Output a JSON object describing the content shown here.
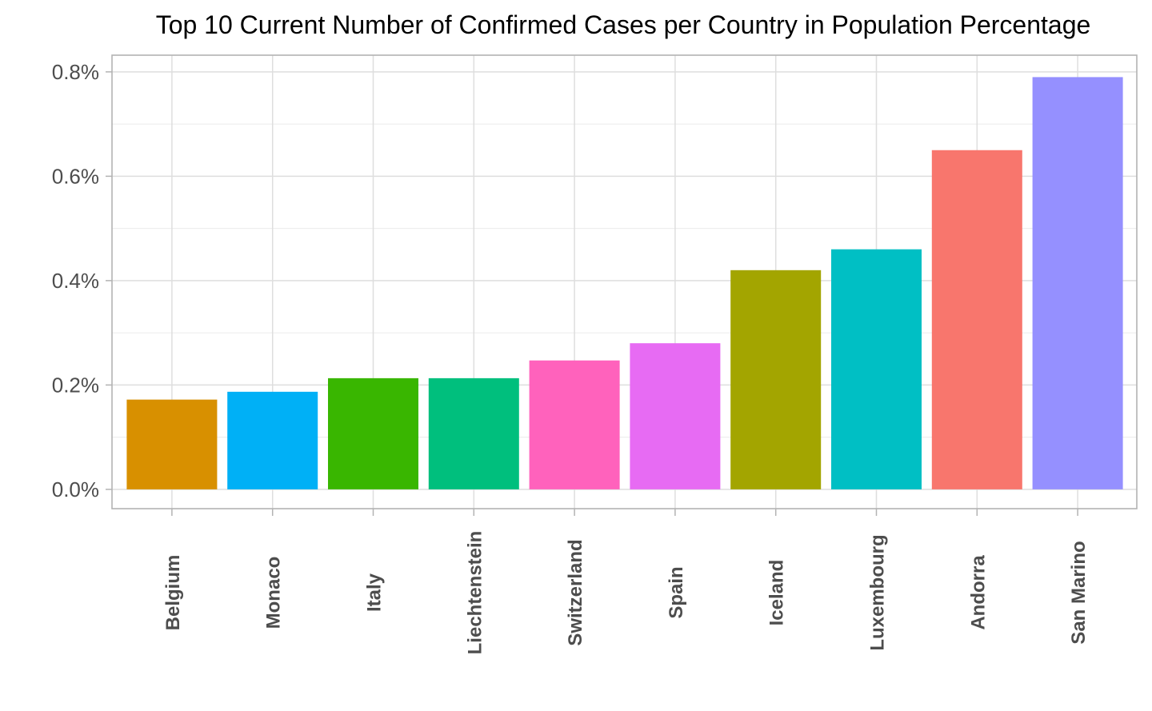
{
  "chart_data": {
    "type": "bar",
    "title": "Top 10 Current Number of Confirmed Cases per Country in Population Percentage",
    "xlabel": "",
    "ylabel": "",
    "categories": [
      "Belgium",
      "Monaco",
      "Italy",
      "Liechtenstein",
      "Switzerland",
      "Spain",
      "Iceland",
      "Luxembourg",
      "Andorra",
      "San Marino"
    ],
    "values": [
      0.172,
      0.187,
      0.213,
      0.213,
      0.247,
      0.28,
      0.42,
      0.46,
      0.65,
      0.79
    ],
    "colors": [
      "#D89000",
      "#00B0F6",
      "#39B600",
      "#00BF7D",
      "#FF62BC",
      "#E76BF3",
      "#A3A500",
      "#00BFC4",
      "#F8766D",
      "#9590FF"
    ],
    "ylim": [
      -0.037,
      0.832
    ],
    "yticks": [
      0.0,
      0.2,
      0.4,
      0.6,
      0.8
    ],
    "ytick_labels": [
      "0.0%",
      "0.2%",
      "0.4%",
      "0.6%",
      "0.8%"
    ],
    "grid": true,
    "legend": "none"
  }
}
